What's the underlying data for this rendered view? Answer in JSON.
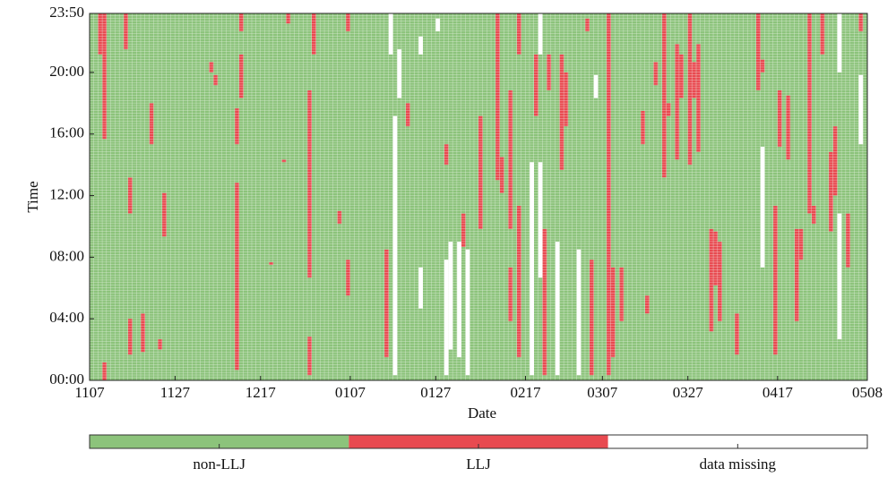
{
  "chart_data": {
    "type": "heatmap",
    "x_label": "Date",
    "y_label": "Time",
    "xlim": [
      0,
      182
    ],
    "xticks": [
      {
        "value": 0,
        "label": "1107"
      },
      {
        "value": 20,
        "label": "1127"
      },
      {
        "value": 40,
        "label": "1217"
      },
      {
        "value": 61,
        "label": "0107"
      },
      {
        "value": 81,
        "label": "0127"
      },
      {
        "value": 102,
        "label": "0217"
      },
      {
        "value": 120,
        "label": "0307"
      },
      {
        "value": 140,
        "label": "0327"
      },
      {
        "value": 161,
        "label": "0417"
      },
      {
        "value": 182,
        "label": "0508"
      }
    ],
    "ylim": [
      0,
      1430
    ],
    "yticks": [
      {
        "value": 0,
        "label": "00:00"
      },
      {
        "value": 240,
        "label": "04:00"
      },
      {
        "value": 480,
        "label": "08:00"
      },
      {
        "value": 720,
        "label": "12:00"
      },
      {
        "value": 960,
        "label": "16:00"
      },
      {
        "value": 1200,
        "label": "20:00"
      },
      {
        "value": 1430,
        "label": "23:50"
      }
    ],
    "series": [
      {
        "name": "non-LLJ",
        "color": "#8cc37b"
      },
      {
        "name": "LLJ",
        "color": "#e84a50",
        "x": [
          3,
          3,
          2,
          8,
          9,
          9,
          12,
          14,
          17,
          16,
          28,
          29,
          34,
          35,
          35,
          34,
          42,
          45,
          46,
          51,
          51,
          52,
          58,
          60,
          60,
          69,
          74,
          83,
          87,
          91,
          95,
          96,
          98,
          98,
          100,
          100,
          104,
          106,
          107,
          110,
          111,
          116,
          117,
          121,
          122,
          124,
          129,
          130,
          132,
          134,
          135,
          137,
          138,
          140,
          141,
          142,
          145,
          146,
          147,
          151,
          156,
          157,
          160,
          161,
          163,
          165,
          166,
          168,
          169,
          171,
          173,
          174,
          177,
          180,
          182
        ],
        "start": [
          940,
          0,
          1270,
          1290,
          650,
          100,
          110,
          920,
          560,
          120,
          1200,
          1150,
          40,
          1100,
          1360,
          920,
          450,
          850,
          1390,
          400,
          20,
          1270,
          610,
          1360,
          330,
          90,
          990,
          840,
          520,
          590,
          780,
          730,
          590,
          230,
          1270,
          90,
          1030,
          20,
          1130,
          820,
          990,
          1360,
          20,
          20,
          90,
          230,
          920,
          260,
          1150,
          790,
          1030,
          860,
          1100,
          840,
          1100,
          890,
          190,
          370,
          230,
          100,
          1130,
          1200,
          100,
          910,
          860,
          230,
          470,
          650,
          610,
          1270,
          580,
          720,
          440,
          1360,
          920
        ],
        "end": [
          1430,
          70,
          1430,
          1430,
          790,
          240,
          260,
          1080,
          730,
          160,
          1240,
          1190,
          770,
          1270,
          1430,
          1060,
          460,
          860,
          1430,
          1130,
          170,
          1430,
          660,
          1430,
          470,
          510,
          1080,
          920,
          650,
          1030,
          1430,
          870,
          1130,
          440,
          1430,
          680,
          1270,
          590,
          1270,
          1270,
          1200,
          1410,
          470,
          1430,
          440,
          440,
          1050,
          330,
          1240,
          1430,
          1080,
          1310,
          1270,
          1430,
          1240,
          1310,
          590,
          580,
          540,
          260,
          1430,
          1250,
          680,
          1130,
          1110,
          590,
          590,
          1430,
          680,
          1430,
          890,
          990,
          650,
          1430,
          1060
        ]
      },
      {
        "name": "data missing",
        "color": "#ffffff",
        "x": [
          70,
          71,
          72,
          77,
          77,
          81,
          83,
          84,
          86,
          88,
          103,
          105,
          105,
          109,
          114,
          118,
          157,
          175,
          175,
          180
        ],
        "start": [
          1270,
          20,
          1100,
          280,
          1270,
          1360,
          20,
          120,
          90,
          20,
          20,
          1270,
          400,
          20,
          20,
          1100,
          440,
          1200,
          160,
          920
        ],
        "end": [
          1430,
          1030,
          1290,
          440,
          1340,
          1410,
          470,
          540,
          540,
          510,
          850,
          1430,
          850,
          540,
          510,
          1190,
          910,
          1430,
          650,
          1190
        ]
      }
    ]
  }
}
